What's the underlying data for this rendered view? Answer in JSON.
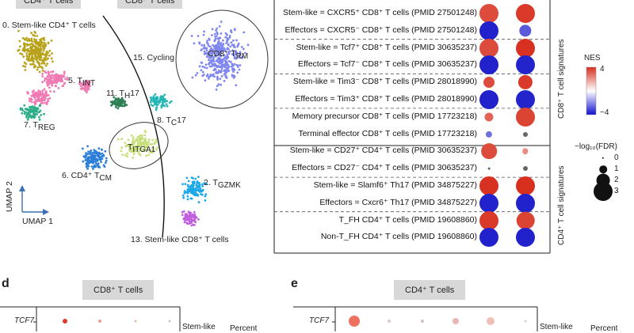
{
  "umap": {
    "header_left": "CD4⁺ T cells",
    "header_right": "CD8⁺ T cells",
    "clusters": [
      {
        "key": "c0",
        "text": "0. Stem-like CD4⁺ T cells"
      },
      {
        "key": "c15",
        "text": "15. Cycling"
      },
      {
        "key": "c5",
        "text": "5. T",
        "sub": "INT"
      },
      {
        "key": "c11",
        "text": "11. T",
        "sub": "H",
        "tail": "17"
      },
      {
        "key": "c7",
        "text": "7. T",
        "sub": "REG"
      },
      {
        "key": "c8",
        "text": "8. T",
        "sub": "C",
        "tail": "17"
      },
      {
        "key": "citga",
        "text": "T",
        "sub": "ITGA1"
      },
      {
        "key": "c6",
        "text": "6. CD4⁺ T",
        "sub": "CM"
      },
      {
        "key": "c2",
        "text": "2. T",
        "sub": "GZMK"
      },
      {
        "key": "c13",
        "text": "13. Stem-like CD8⁺ T cells"
      },
      {
        "key": "crm",
        "text": "CD8⁺ T",
        "sub": "RM"
      }
    ],
    "axis_y": "UMAP 2",
    "axis_x": "UMAP 1"
  },
  "gsea": {
    "rows": [
      {
        "label": "Stem-like = CXCR5⁺ CD8⁺ T cells (PMID 27501248)",
        "nes1": 2.6,
        "nes2": 3.0,
        "fdr1": 3.0,
        "fdr2": 3.0
      },
      {
        "label": "Effectors = CXCR5⁻ CD8⁺ T cells (PMID 27501248)",
        "nes1": -3.6,
        "nes2": -2.0,
        "fdr1": 3.0,
        "fdr2": 1.8
      },
      {
        "label": "Stem-like = Tcf7⁺ CD8⁺ T cells (PMID 30635237)",
        "nes1": 2.6,
        "nes2": 3.2,
        "fdr1": 3.0,
        "fdr2": 3.0
      },
      {
        "label": "Effectors = Tcf7⁻ CD8⁺ T cells (PMID 30635237)",
        "nes1": -3.6,
        "nes2": -3.2,
        "fdr1": 3.0,
        "fdr2": 3.0
      },
      {
        "label": "Stem-like = Tim3⁻ CD8⁺ T cells (PMID 28018990)",
        "nes1": 2.6,
        "nes2": 3.0,
        "fdr1": 1.6,
        "fdr2": 2.2
      },
      {
        "label": "Effectors = Tim3⁺ CD8⁺ T cells (PMID 28018990)",
        "nes1": -3.6,
        "nes2": -3.2,
        "fdr1": 3.0,
        "fdr2": 3.0
      },
      {
        "label": "Memory precursor CD8⁺ T cells (PMID 17723218)",
        "nes1": 2.0,
        "nes2": 2.8,
        "fdr1": 1.2,
        "fdr2": 3.0
      },
      {
        "label": "Terminal effector CD8⁺ T cells (PMID 17723218)",
        "nes1": -1.5,
        "nes2": 0,
        "fdr1": 0.8,
        "fdr2": 0.5
      },
      {
        "label": "Stem-like = CD27⁺ CD4⁺ T cells (PMID 30635237)",
        "nes1": 2.6,
        "nes2": 1.0,
        "fdr1": 2.4,
        "fdr2": 0.7
      },
      {
        "label": "Effectors = CD27⁻ CD4⁺ T cells (PMID 30635237)",
        "nes1": 0,
        "nes2": 0,
        "fdr1": 0.05,
        "fdr2": 0.5
      },
      {
        "label": "Stem-like = Slamf6⁺ Th17 (PMID 34875227)",
        "nes1": 3.2,
        "nes2": 3.4,
        "fdr1": 3.0,
        "fdr2": 3.0
      },
      {
        "label": "Effectors = Cxcr6⁺ Th17 (PMID 34875227)",
        "nes1": -3.6,
        "nes2": -3.6,
        "fdr1": 3.0,
        "fdr2": 3.0
      },
      {
        "label": "T_FH CD4⁺ T cells (PMID 19608860)",
        "nes1": 3.0,
        "nes2": 2.8,
        "fdr1": 3.0,
        "fdr2": 2.8
      },
      {
        "label": "Non-T_FH CD4⁺ T cells (PMID 19608860)",
        "nes1": -3.6,
        "nes2": -3.6,
        "fdr1": 3.0,
        "fdr2": 3.0
      }
    ],
    "group_cd8": "CD8⁺ T cell signatures",
    "group_cd4": "CD4⁺ T cell signatures",
    "legend_nes_title": "NES",
    "legend_nes_max": "4",
    "legend_nes_min": "−4",
    "legend_fdr_title": "−log₁₀(FDR)",
    "legend_fdr_values": [
      "0",
      "1",
      "2",
      "3"
    ],
    "colors": {
      "pos": "#d7301f",
      "neg": "#2222cc",
      "neutral": "#666666"
    }
  },
  "panel_d": {
    "letter": "d",
    "title": "CD8⁺ T cells",
    "gene": "TCF7",
    "group_label": "Stem-like",
    "percent_label": "Percent"
  },
  "panel_e": {
    "letter": "e",
    "title": "CD4⁺ T cells",
    "gene": "TCF7",
    "group_label": "Stem-like",
    "percent_label": "Percent"
  }
}
